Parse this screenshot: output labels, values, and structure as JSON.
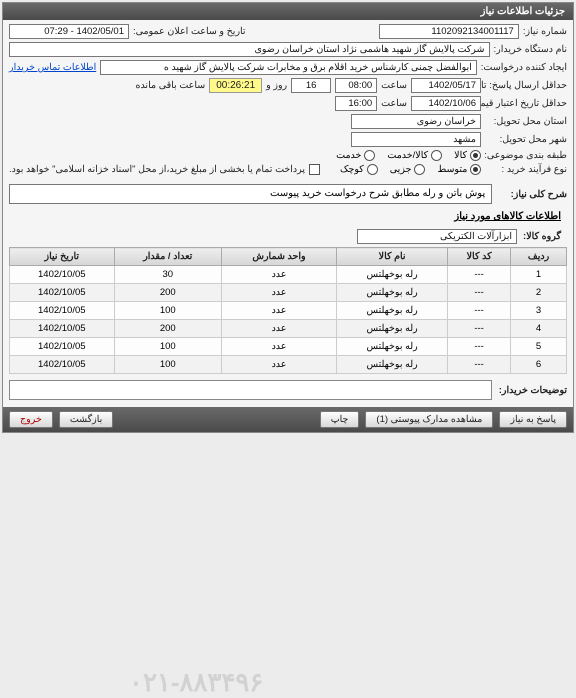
{
  "panel": {
    "title": "جزئیات اطلاعات نیاز"
  },
  "fields": {
    "need_no_label": "شماره نیاز:",
    "need_no": "1102092134001117",
    "announce_label": "تاریخ و ساعت اعلان عمومی:",
    "announce_val": "1402/05/01 - 07:29",
    "buyer_label": "نام دستگاه خریدار:",
    "buyer_val": "شرکت پالایش گاز شهید هاشمی نژاد   استان خراسان رضوی",
    "creator_label": "ایجاد کننده درخواست:",
    "creator_val": "ابوالفضل چمنی کارشناس خرید اقلام برق و مخابرات شرکت پالایش گاز شهید ه",
    "contact_link": "اطلاعات تماس خریدار",
    "deadline_label": "حداقل ارسال پاسخ: تا تاریخ:",
    "deadline_date": "1402/05/17",
    "time_label": "ساعت",
    "deadline_time": "08:00",
    "hours_val": "16",
    "hours_label": "روز و",
    "timer": "00:26:21",
    "timer_suffix": "ساعت باقی مانده",
    "credit_label": "حداقل تاریخ اعتبار قیمت: تا تاریخ:",
    "credit_date": "1402/10/06",
    "credit_time": "16:00",
    "province_label": "استان محل تحویل:",
    "province_val": "خراسان رضوی",
    "city_label": "شهر محل تحویل:",
    "city_val": "مشهد",
    "classify_label": "طبقه بندی موضوعی:",
    "class_goods": "کالا",
    "class_goods_service": "کالا/خدمت",
    "class_service": "خدمت",
    "proc_label": "نوع فرآیند خرید :",
    "proc_small": "کوچک",
    "proc_medium": "متوسط",
    "proc_partial": "جزیی",
    "pay_note": "پرداخت تمام یا بخشی از مبلغ خرید،از محل \"اسناد خزانه اسلامی\" خواهد بود.",
    "desc_label": "شرح کلی نیاز:",
    "desc_val": "پوش باتن و رله مطابق شرح درخواست خرید پیوست",
    "items_header": "اطلاعات کالاهای مورد نیاز",
    "group_label": "گروه کالا:",
    "group_val": "ابزارآلات الکتریکی",
    "notes_label": "توضیحات خریدار:"
  },
  "table": {
    "cols": [
      "ردیف",
      "کد کالا",
      "نام کالا",
      "واحد شمارش",
      "تعداد / مقدار",
      "تاریخ نیاز"
    ],
    "rows": [
      [
        "1",
        "---",
        "رله بوخهلتس",
        "عدد",
        "30",
        "1402/10/05"
      ],
      [
        "2",
        "---",
        "رله بوخهلتس",
        "عدد",
        "200",
        "1402/10/05"
      ],
      [
        "3",
        "---",
        "رله بوخهلتس",
        "عدد",
        "100",
        "1402/10/05"
      ],
      [
        "4",
        "---",
        "رله بوخهلتس",
        "عدد",
        "200",
        "1402/10/05"
      ],
      [
        "5",
        "---",
        "رله بوخهلتس",
        "عدد",
        "100",
        "1402/10/05"
      ],
      [
        "6",
        "---",
        "رله بوخهلتس",
        "عدد",
        "100",
        "1402/10/05"
      ]
    ]
  },
  "footer": {
    "reply": "پاسخ به نیاز",
    "attach": "مشاهده مدارک پیوستی (1)",
    "print": "چاپ",
    "back": "بازگشت",
    "exit": "خروج"
  },
  "watermark": "۰۲۱-۸۸۳۴۹۶"
}
